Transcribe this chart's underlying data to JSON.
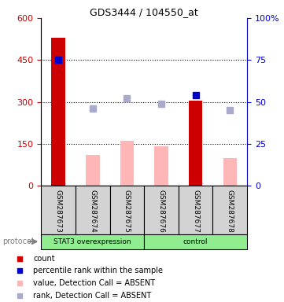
{
  "title": "GDS3444 / 104550_at",
  "samples": [
    "GSM287673",
    "GSM287674",
    "GSM287675",
    "GSM287676",
    "GSM287677",
    "GSM287678"
  ],
  "ylim_left": [
    0,
    600
  ],
  "ylim_right": [
    0,
    100
  ],
  "yticks_left": [
    0,
    150,
    300,
    450,
    600
  ],
  "yticks_right": [
    0,
    25,
    50,
    75,
    100
  ],
  "ytick_labels_right": [
    "0",
    "25",
    "50",
    "75",
    "100%"
  ],
  "red_bars": {
    "indices": [
      0,
      4
    ],
    "values": [
      530,
      305
    ]
  },
  "pink_bars": {
    "indices": [
      1,
      2,
      3,
      5
    ],
    "values": [
      110,
      160,
      140,
      100
    ]
  },
  "blue_squares": {
    "indices": [
      0,
      4
    ],
    "values": [
      75,
      54
    ]
  },
  "light_blue_squares": {
    "indices": [
      1,
      2,
      3,
      5
    ],
    "values": [
      46,
      52,
      49,
      45
    ]
  },
  "colors": {
    "red_bar": "#CC0000",
    "pink_bar": "#FFB6B6",
    "blue_square": "#0000CC",
    "light_blue_square": "#AAAACC",
    "left_tick_color": "#CC0000",
    "right_tick_color": "#0000CC",
    "sample_box_bg": "#D3D3D3",
    "protocol_bg": "#90EE90",
    "protocol_text": "gray"
  },
  "legend": [
    {
      "color": "#CC0000",
      "label": "count"
    },
    {
      "color": "#0000CC",
      "label": "percentile rank within the sample"
    },
    {
      "color": "#FFB6B6",
      "label": "value, Detection Call = ABSENT"
    },
    {
      "color": "#AAAACC",
      "label": "rank, Detection Call = ABSENT"
    }
  ],
  "bar_width": 0.4,
  "marker_size": 6
}
